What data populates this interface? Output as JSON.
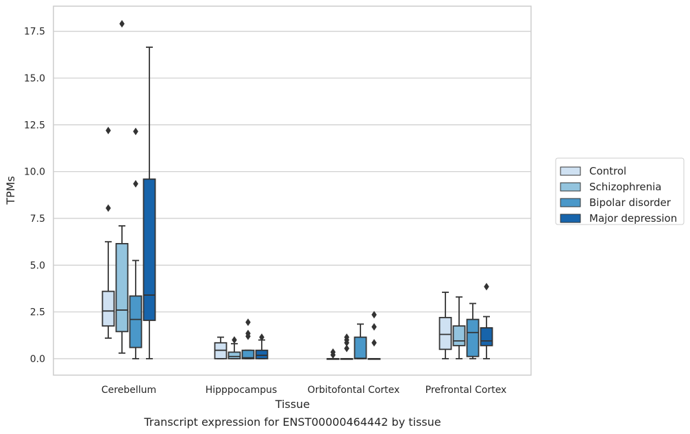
{
  "caption": "Transcript expression for ENST00000464442 by tissue",
  "colors": {
    "Control": "#cfe1f2",
    "Schizophrenia": "#93c4de",
    "Bipolar disorder": "#4a98c9",
    "Major depression": "#1764ab",
    "edge": "#333333",
    "grid": "#cccccc",
    "frame": "#cccccc"
  },
  "chart_data": {
    "type": "box",
    "title": "",
    "xlabel": "Tissue",
    "ylabel": "TPMs",
    "ylim": [
      -0.9,
      18.8
    ],
    "yticks": [
      0.0,
      2.5,
      5.0,
      7.5,
      10.0,
      12.5,
      15.0,
      17.5
    ],
    "ytick_labels": [
      "0.0",
      "2.5",
      "5.0",
      "7.5",
      "10.0",
      "12.5",
      "15.0",
      "17.5"
    ],
    "grid": "horizontal",
    "legend_position": "outside-right",
    "categories": [
      "Cerebellum",
      "Hipppocampus",
      "Orbitofontal Cortex",
      "Prefrontal Cortex"
    ],
    "series": [
      {
        "name": "Control",
        "boxes": [
          {
            "whislo": 1.1,
            "q1": 1.75,
            "med": 2.55,
            "q3": 3.6,
            "whishi": 6.25,
            "fliers": [
              8.05,
              12.2
            ]
          },
          {
            "whislo": 0.0,
            "q1": 0.0,
            "med": 0.45,
            "q3": 0.85,
            "whishi": 1.15,
            "fliers": []
          },
          {
            "whislo": 0.0,
            "q1": 0.0,
            "med": 0.0,
            "q3": 0.0,
            "whishi": 0.0,
            "fliers": [
              0.2,
              0.35
            ]
          },
          {
            "whislo": 0.0,
            "q1": 0.5,
            "med": 1.3,
            "q3": 2.2,
            "whishi": 3.55,
            "fliers": []
          }
        ]
      },
      {
        "name": "Schizophrenia",
        "boxes": [
          {
            "whislo": 0.3,
            "q1": 1.45,
            "med": 2.6,
            "q3": 6.15,
            "whishi": 7.1,
            "fliers": [
              17.9
            ]
          },
          {
            "whislo": 0.0,
            "q1": 0.0,
            "med": 0.12,
            "q3": 0.35,
            "whishi": 0.8,
            "fliers": [
              1.0
            ]
          },
          {
            "whislo": 0.0,
            "q1": 0.0,
            "med": 0.0,
            "q3": 0.0,
            "whishi": 0.0,
            "fliers": [
              0.55,
              0.85,
              1.0,
              1.15
            ]
          },
          {
            "whislo": 0.0,
            "q1": 0.7,
            "med": 0.95,
            "q3": 1.75,
            "whishi": 3.3,
            "fliers": []
          }
        ]
      },
      {
        "name": "Bipolar disorder",
        "boxes": [
          {
            "whislo": 0.0,
            "q1": 0.6,
            "med": 2.1,
            "q3": 3.35,
            "whishi": 5.25,
            "fliers": [
              9.35,
              12.15
            ]
          },
          {
            "whislo": 0.0,
            "q1": 0.0,
            "med": 0.05,
            "q3": 0.45,
            "whishi": 0.45,
            "fliers": [
              1.2,
              1.35,
              1.95
            ]
          },
          {
            "whislo": 0.0,
            "q1": 0.0,
            "med": 0.02,
            "q3": 1.15,
            "whishi": 1.85,
            "fliers": []
          },
          {
            "whislo": 0.0,
            "q1": 0.12,
            "med": 1.4,
            "q3": 2.1,
            "whishi": 2.95,
            "fliers": []
          }
        ]
      },
      {
        "name": "Major depression",
        "boxes": [
          {
            "whislo": 0.0,
            "q1": 2.05,
            "med": 3.4,
            "q3": 9.6,
            "whishi": 16.65,
            "fliers": []
          },
          {
            "whislo": 0.0,
            "q1": 0.0,
            "med": 0.18,
            "q3": 0.45,
            "whishi": 1.0,
            "fliers": [
              1.15
            ]
          },
          {
            "whislo": 0.0,
            "q1": 0.0,
            "med": 0.0,
            "q3": 0.0,
            "whishi": 0.0,
            "fliers": [
              0.85,
              1.7,
              2.35
            ]
          },
          {
            "whislo": 0.0,
            "q1": 0.7,
            "med": 0.95,
            "q3": 1.65,
            "whishi": 2.25,
            "fliers": [
              3.85
            ]
          }
        ]
      }
    ]
  }
}
